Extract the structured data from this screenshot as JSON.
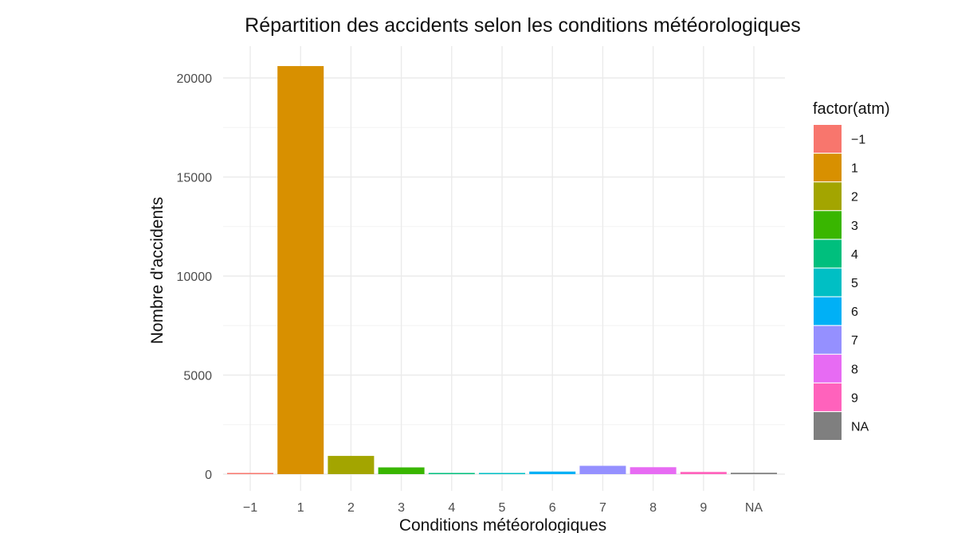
{
  "chart_data": {
    "type": "bar",
    "title": "Répartition des accidents selon les conditions météorologiques",
    "xlabel": "Conditions météorologiques",
    "ylabel": "Nombre d'accidents",
    "categories": [
      "−1",
      "1",
      "2",
      "3",
      "4",
      "5",
      "6",
      "7",
      "8",
      "9",
      "NA"
    ],
    "values": [
      30,
      20600,
      920,
      340,
      50,
      50,
      130,
      420,
      350,
      110,
      70
    ],
    "ylim": [
      0,
      21500
    ],
    "yticks": [
      0,
      5000,
      10000,
      15000,
      20000
    ],
    "ytick_labels": [
      "0",
      "5000",
      "10000",
      "15000",
      "20000"
    ],
    "grid": true,
    "legend": {
      "title": "factor(atm)",
      "position": "right",
      "entries": [
        "−1",
        "1",
        "2",
        "3",
        "4",
        "5",
        "6",
        "7",
        "8",
        "9",
        "NA"
      ]
    },
    "colors": [
      "#F8766D",
      "#D89000",
      "#A3A500",
      "#39B600",
      "#00BF7D",
      "#00BFC4",
      "#00B0F6",
      "#9590FF",
      "#E76BF3",
      "#FF62BC",
      "#7F7F7F"
    ]
  }
}
